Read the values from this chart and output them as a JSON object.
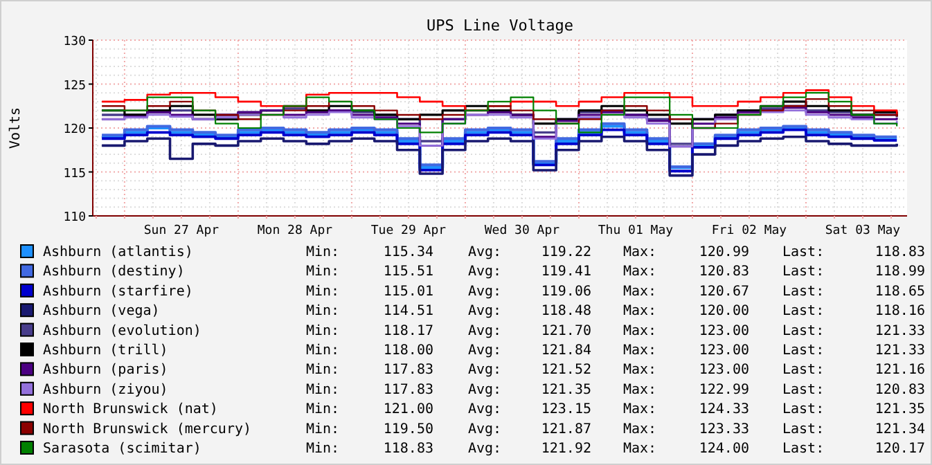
{
  "chart_data": {
    "type": "step",
    "title": "UPS Line Voltage",
    "ylabel": "Volts",
    "x": [
      "--04-26T19:12",
      "--04-27T00:00",
      "--04-27T04:48",
      "--04-27T09:36",
      "--04-27T14:24",
      "--04-27T19:12",
      "--04-28T00:00",
      "--04-28T04:48",
      "--04-28T09:36",
      "--04-28T14:24",
      "--04-28T19:12",
      "--04-29T00:00",
      "--04-29T04:48",
      "--04-29T09:36",
      "--04-29T14:24",
      "--04-29T19:12",
      "--04-30T00:00",
      "--04-30T04:48",
      "--04-30T09:36",
      "--04-30T14:24",
      "--04-30T19:12",
      "--05-01T00:00",
      "--05-01T04:48",
      "--05-01T09:36",
      "--05-01T14:24",
      "--05-01T19:12",
      "--05-02T00:00",
      "--05-02T04:48",
      "--05-02T09:36",
      "--05-02T14:24",
      "--05-02T19:12",
      "--05-03T00:00",
      "--05-03T04:48",
      "--05-03T09:36",
      "--05-03T14:24",
      "--05-03T19:12"
    ],
    "xlim": [
      "--04-26T17:17",
      "--05-03T21:22"
    ],
    "xticks": [
      {
        "value": "--04-26T18:00",
        "label": null
      },
      {
        "value": "--04-27T00:00",
        "label": null
      },
      {
        "value": "--04-27T06:00",
        "label": null
      },
      {
        "value": "--04-27T12:00",
        "label": "Sun 27 Apr"
      },
      {
        "value": "--04-27T18:00",
        "label": null
      },
      {
        "value": "--04-28T00:00",
        "label": null
      },
      {
        "value": "--04-28T06:00",
        "label": null
      },
      {
        "value": "--04-28T12:00",
        "label": "Mon 28 Apr"
      },
      {
        "value": "--04-28T18:00",
        "label": null
      },
      {
        "value": "--04-29T00:00",
        "label": null
      },
      {
        "value": "--04-29T06:00",
        "label": null
      },
      {
        "value": "--04-29T12:00",
        "label": "Tue 29 Apr"
      },
      {
        "value": "--04-29T18:00",
        "label": null
      },
      {
        "value": "--04-30T00:00",
        "label": null
      },
      {
        "value": "--04-30T06:00",
        "label": null
      },
      {
        "value": "--04-30T12:00",
        "label": "Wed 30 Apr"
      },
      {
        "value": "--04-30T18:00",
        "label": null
      },
      {
        "value": "--05-01T00:00",
        "label": null
      },
      {
        "value": "--05-01T06:00",
        "label": null
      },
      {
        "value": "--05-01T12:00",
        "label": "Thu 01 May"
      },
      {
        "value": "--05-01T18:00",
        "label": null
      },
      {
        "value": "--05-02T00:00",
        "label": null
      },
      {
        "value": "--05-02T06:00",
        "label": null
      },
      {
        "value": "--05-02T12:00",
        "label": "Fri 02 May"
      },
      {
        "value": "--05-02T18:00",
        "label": null
      },
      {
        "value": "--05-03T00:00",
        "label": null
      },
      {
        "value": "--05-03T06:00",
        "label": null
      },
      {
        "value": "--05-03T12:00",
        "label": "Sat 03 May"
      },
      {
        "value": "--05-03T18:00",
        "label": null
      }
    ],
    "ylim": [
      110,
      130
    ],
    "yticks": [
      110,
      {
        "value": 111,
        "label": null
      },
      {
        "value": 112,
        "label": null
      },
      {
        "value": 113,
        "label": null
      },
      {
        "value": 114,
        "label": null
      },
      115,
      {
        "value": 116,
        "label": null
      },
      {
        "value": 117,
        "label": null
      },
      {
        "value": 118,
        "label": null
      },
      {
        "value": 119,
        "label": null
      },
      120,
      {
        "value": 121,
        "label": null
      },
      {
        "value": 122,
        "label": null
      },
      {
        "value": 123,
        "label": null
      },
      {
        "value": 124,
        "label": null
      },
      125,
      {
        "value": 126,
        "label": null
      },
      {
        "value": 127,
        "label": null
      },
      {
        "value": 128,
        "label": null
      },
      {
        "value": 129,
        "label": null
      },
      130
    ],
    "grid": true,
    "legend": "bottom",
    "series": [
      {
        "name": "Ashburn (atlantis)",
        "color": "#1e90ff",
        "values": [
          119.0,
          119.5,
          120.0,
          119.5,
          119.2,
          119.0,
          119.5,
          119.8,
          119.5,
          119.2,
          119.5,
          119.8,
          119.5,
          118.5,
          115.5,
          118.5,
          119.5,
          119.8,
          119.5,
          116.0,
          118.5,
          119.5,
          120.2,
          119.5,
          118.5,
          115.5,
          118.0,
          119.0,
          119.5,
          119.8,
          120.0,
          119.5,
          119.2,
          119.0,
          118.8,
          118.8
        ]
      },
      {
        "name": "Ashburn (destiny)",
        "color": "#4169e1",
        "values": [
          119.2,
          119.8,
          120.2,
          119.8,
          119.5,
          119.2,
          119.8,
          120.0,
          119.8,
          119.5,
          119.8,
          120.0,
          119.8,
          118.8,
          115.8,
          118.8,
          119.8,
          120.0,
          119.8,
          116.2,
          118.8,
          119.8,
          120.5,
          119.8,
          118.8,
          115.6,
          118.2,
          119.2,
          119.8,
          120.0,
          120.2,
          119.8,
          119.5,
          119.2,
          119.0,
          119.0
        ]
      },
      {
        "name": "Ashburn (starfire)",
        "color": "#0000cd",
        "values": [
          118.8,
          119.2,
          119.5,
          119.2,
          119.0,
          118.8,
          119.2,
          119.5,
          119.2,
          119.0,
          119.2,
          119.5,
          119.2,
          118.2,
          115.2,
          118.2,
          119.2,
          119.5,
          119.2,
          115.8,
          118.2,
          119.2,
          119.8,
          119.2,
          118.2,
          115.1,
          117.8,
          118.8,
          119.2,
          119.5,
          119.8,
          119.2,
          119.0,
          118.8,
          118.6,
          118.6
        ]
      },
      {
        "name": "Ashburn (vega)",
        "color": "#191970",
        "values": [
          118.0,
          118.5,
          118.8,
          116.5,
          118.2,
          118.0,
          118.5,
          118.8,
          118.5,
          118.2,
          118.5,
          118.8,
          118.5,
          117.5,
          114.8,
          117.5,
          118.5,
          118.8,
          118.5,
          115.2,
          117.5,
          118.5,
          119.0,
          118.5,
          117.5,
          114.6,
          117.0,
          118.0,
          118.5,
          118.8,
          119.0,
          118.5,
          118.2,
          118.0,
          118.0,
          118.2
        ]
      },
      {
        "name": "Ashburn (evolution)",
        "color": "#483d8b",
        "values": [
          121.5,
          121.5,
          121.8,
          122.0,
          121.0,
          121.5,
          121.8,
          122.0,
          122.2,
          121.8,
          122.0,
          121.8,
          121.5,
          121.0,
          118.5,
          121.0,
          122.0,
          121.8,
          121.5,
          119.5,
          121.0,
          121.8,
          122.0,
          121.5,
          121.0,
          118.2,
          121.0,
          121.5,
          122.0,
          122.2,
          122.5,
          122.0,
          121.8,
          121.5,
          121.5,
          121.3
        ]
      },
      {
        "name": "Ashburn (trill)",
        "color": "#000000",
        "values": [
          122.0,
          121.5,
          122.0,
          122.5,
          121.5,
          121.0,
          121.5,
          122.0,
          122.5,
          122.0,
          122.5,
          122.0,
          121.5,
          121.0,
          121.5,
          122.0,
          122.5,
          122.0,
          121.5,
          120.5,
          121.0,
          122.0,
          122.5,
          122.0,
          121.5,
          120.5,
          121.0,
          121.5,
          122.0,
          122.5,
          123.0,
          122.5,
          122.0,
          121.5,
          121.8,
          121.3
        ]
      },
      {
        "name": "Ashburn (paris)",
        "color": "#4b0082",
        "values": [
          121.0,
          121.3,
          121.8,
          121.5,
          121.0,
          121.5,
          121.8,
          122.0,
          121.5,
          121.8,
          122.0,
          121.5,
          121.2,
          120.5,
          118.0,
          121.0,
          121.5,
          121.8,
          121.5,
          119.0,
          120.8,
          121.5,
          121.8,
          121.5,
          120.8,
          117.9,
          120.5,
          121.2,
          121.8,
          122.0,
          122.3,
          121.8,
          121.5,
          121.2,
          121.0,
          121.2
        ]
      },
      {
        "name": "Ashburn (ziyou)",
        "color": "#9370db",
        "values": [
          121.0,
          121.2,
          121.5,
          121.3,
          121.0,
          121.2,
          121.5,
          121.5,
          121.2,
          121.5,
          121.8,
          121.2,
          121.0,
          120.2,
          118.0,
          120.5,
          121.5,
          121.5,
          121.2,
          118.8,
          120.5,
          121.2,
          121.5,
          121.2,
          120.5,
          117.9,
          120.0,
          121.0,
          121.5,
          121.8,
          122.0,
          121.5,
          121.2,
          121.0,
          120.5,
          120.8
        ]
      },
      {
        "name": "North Brunswick (nat)",
        "color": "#ff0000",
        "values": [
          123.0,
          123.2,
          123.8,
          124.0,
          124.0,
          123.5,
          123.0,
          122.5,
          122.5,
          123.8,
          124.0,
          124.0,
          124.0,
          123.5,
          123.0,
          122.5,
          122.0,
          122.5,
          123.0,
          123.0,
          122.5,
          123.0,
          123.5,
          124.0,
          124.0,
          123.5,
          122.5,
          122.5,
          123.0,
          123.5,
          124.0,
          124.3,
          123.5,
          122.5,
          122.0,
          121.4
        ]
      },
      {
        "name": "North Brunswick (mercury)",
        "color": "#8b0000",
        "values": [
          122.5,
          122.0,
          122.5,
          123.0,
          122.0,
          121.5,
          121.0,
          121.5,
          122.0,
          122.5,
          123.0,
          122.5,
          122.0,
          121.5,
          121.0,
          121.5,
          122.0,
          122.5,
          122.0,
          121.0,
          120.5,
          121.0,
          122.0,
          122.5,
          122.0,
          121.0,
          120.0,
          120.5,
          121.5,
          122.0,
          122.5,
          123.3,
          122.5,
          122.0,
          121.5,
          121.3
        ]
      },
      {
        "name": "Sarasota (scimitar)",
        "color": "#008000",
        "values": [
          122.0,
          122.0,
          123.5,
          123.5,
          122.0,
          120.5,
          120.0,
          121.5,
          122.5,
          123.5,
          123.0,
          122.0,
          121.0,
          120.0,
          119.5,
          120.5,
          122.0,
          123.0,
          123.5,
          122.0,
          120.5,
          119.5,
          121.5,
          123.5,
          123.5,
          121.5,
          120.0,
          120.0,
          121.5,
          122.5,
          123.5,
          124.0,
          123.0,
          121.5,
          120.5,
          120.2
        ]
      }
    ],
    "annotations": [
      "Min: 115.34 Avg: 119.22 Max: 120.99 Last: 118.83",
      "Min: 115.51 Avg: 119.41 Max: 120.83 Last: 118.99",
      "Min: 115.01 Avg: 119.06 Max: 120.67 Last: 118.65",
      "Min: 114.51 Avg: 118.48 Max: 120.00 Last: 118.16",
      "Min: 118.17 Avg: 121.70 Max: 123.00 Last: 121.33",
      "Min: 118.00 Avg: 121.84 Max: 123.00 Last: 121.33",
      "Min: 117.83 Avg: 121.52 Max: 123.00 Last: 121.16",
      "Min: 117.83 Avg: 121.35 Max: 122.99 Last: 120.83",
      "Min: 121.00 Avg: 123.15 Max: 124.33 Last: 121.35",
      "Min: 119.50 Avg: 121.87 Max: 123.33 Last: 121.34",
      "Min: 118.83 Avg: 121.92 Max: 124.00 Last: 120.17"
    ]
  }
}
